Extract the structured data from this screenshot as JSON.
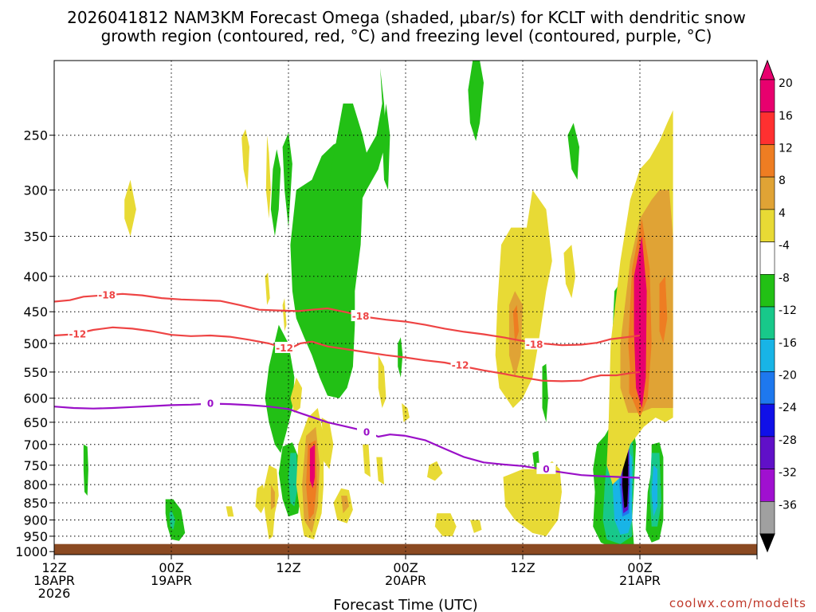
{
  "chart_data": {
    "type": "heatmap",
    "title_line1": "2026041812 NAM3KM Forecast Omega (shaded, μbar/s) for KCLT with dendritic snow",
    "title_line2": "growth region (contoured, red, °C) and freezing level (contoured, purple, °C)",
    "xlabel": "Forecast Time (UTC)",
    "credit": "coolwx.com/modelts",
    "x_hours_range": [
      0,
      36
    ],
    "y_pressure_range": [
      1010,
      195
    ],
    "x_ticks": [
      {
        "hour": 0,
        "line1": "12Z",
        "line2": "18APR",
        "line3": "2026"
      },
      {
        "hour": 6,
        "line1": "00Z",
        "line2": "19APR",
        "line3": ""
      },
      {
        "hour": 12,
        "line1": "12Z",
        "line2": "",
        "line3": ""
      },
      {
        "hour": 18,
        "line1": "00Z",
        "line2": "20APR",
        "line3": ""
      },
      {
        "hour": 24,
        "line1": "12Z",
        "line2": "",
        "line3": ""
      },
      {
        "hour": 30,
        "line1": "00Z",
        "line2": "21APR",
        "line3": ""
      }
    ],
    "y_ticks": [
      250,
      300,
      350,
      400,
      450,
      500,
      550,
      600,
      650,
      700,
      750,
      800,
      850,
      900,
      950,
      1000
    ],
    "colorbar": {
      "labels": [
        "20",
        "16",
        "12",
        "8",
        "4",
        "-4",
        "-8",
        "-12",
        "-16",
        "-20",
        "-24",
        "-28",
        "-32",
        "-36"
      ],
      "colors": [
        "#e8006e",
        "#ff3030",
        "#ee7d22",
        "#e0a335",
        "#e8da35",
        "#ffffff",
        "#22c015",
        "#18c88a",
        "#18b4e6",
        "#1e78ee",
        "#1010e8",
        "#6010c8",
        "#a010d0",
        "#a0a0a0"
      ],
      "top_arrow_color": "#e8006e",
      "bottom_arrow_color": "#000000"
    },
    "omega_colors": {
      "pos4": "#e8da35",
      "pos8": "#e0a335",
      "pos12": "#ee7d22",
      "pos20": "#e8006e",
      "neg4": "#22c015",
      "neg8": "#18c88a",
      "neg12": "#18b4e6",
      "neg20": "#1e78ee",
      "neg24": "#1010e8",
      "neg28": "#6010c8",
      "neg32": "#a010d0",
      "neg36": "#000000",
      "ground": "#8b4a22"
    },
    "ground_pressure": 975,
    "contours": [
      {
        "name": "dgz-minus18",
        "level": -18,
        "color": "#ee4444",
        "points": [
          [
            0,
            435
          ],
          [
            0.8,
            433
          ],
          [
            1.5,
            428
          ],
          [
            2.5,
            426
          ],
          [
            3.5,
            424
          ],
          [
            4.5,
            426
          ],
          [
            5.5,
            430
          ],
          [
            6.5,
            432
          ],
          [
            7.5,
            433
          ],
          [
            8.5,
            434
          ],
          [
            9.5,
            440
          ],
          [
            10.5,
            447
          ],
          [
            11.5,
            448
          ],
          [
            12.5,
            449
          ],
          [
            13.2,
            447
          ],
          [
            14,
            445
          ],
          [
            15,
            451
          ],
          [
            16,
            458
          ],
          [
            17,
            462
          ],
          [
            18,
            465
          ],
          [
            19,
            470
          ],
          [
            20,
            476
          ],
          [
            21,
            481
          ],
          [
            22,
            485
          ],
          [
            23,
            490
          ],
          [
            24,
            496
          ],
          [
            25,
            500
          ],
          [
            26,
            503
          ],
          [
            27,
            502
          ],
          [
            27.8,
            499
          ],
          [
            28.5,
            493
          ],
          [
            29.5,
            489
          ],
          [
            30,
            487
          ]
        ],
        "labels": [
          [
            2.7,
            426
          ],
          [
            15.7,
            457
          ],
          [
            24.6,
            502
          ]
        ]
      },
      {
        "name": "dgz-minus12",
        "level": -12,
        "color": "#ee4444",
        "points": [
          [
            0,
            487
          ],
          [
            1,
            485
          ],
          [
            2,
            478
          ],
          [
            3,
            474
          ],
          [
            4,
            476
          ],
          [
            5,
            480
          ],
          [
            6,
            486
          ],
          [
            7,
            488
          ],
          [
            8,
            487
          ],
          [
            9,
            489
          ],
          [
            10,
            494
          ],
          [
            11,
            500
          ],
          [
            11.6,
            506
          ],
          [
            12,
            510
          ],
          [
            12.6,
            500
          ],
          [
            13.2,
            497
          ],
          [
            14,
            505
          ],
          [
            15,
            510
          ],
          [
            16,
            515
          ],
          [
            17,
            520
          ],
          [
            18,
            524
          ],
          [
            19,
            529
          ],
          [
            20,
            533
          ],
          [
            21,
            540
          ],
          [
            22,
            547
          ],
          [
            23,
            553
          ],
          [
            24,
            560
          ],
          [
            25,
            566
          ],
          [
            26,
            567
          ],
          [
            27,
            566
          ],
          [
            27.5,
            560
          ],
          [
            28,
            556
          ],
          [
            28.8,
            556
          ],
          [
            29.5,
            552
          ],
          [
            30,
            550
          ]
        ],
        "labels": [
          [
            1.2,
            485
          ],
          [
            11.8,
            508
          ],
          [
            20.8,
            538
          ]
        ]
      },
      {
        "name": "freezing-level",
        "level": 0,
        "color": "#9a10c8",
        "points": [
          [
            0,
            617
          ],
          [
            1,
            620
          ],
          [
            2,
            621
          ],
          [
            3,
            620
          ],
          [
            4,
            618
          ],
          [
            5,
            616
          ],
          [
            6,
            614
          ],
          [
            7,
            613
          ],
          [
            8,
            611
          ],
          [
            9,
            612
          ],
          [
            10,
            614
          ],
          [
            11,
            617
          ],
          [
            12,
            622
          ],
          [
            13,
            636
          ],
          [
            14,
            650
          ],
          [
            15,
            660
          ],
          [
            16,
            670
          ],
          [
            16.6,
            682
          ],
          [
            17.2,
            677
          ],
          [
            18,
            680
          ],
          [
            19,
            690
          ],
          [
            20,
            710
          ],
          [
            21,
            730
          ],
          [
            22,
            743
          ],
          [
            23,
            748
          ],
          [
            24,
            752
          ],
          [
            25,
            760
          ],
          [
            26,
            768
          ],
          [
            27,
            775
          ],
          [
            28,
            778
          ],
          [
            29,
            780
          ],
          [
            30,
            782
          ]
        ],
        "labels": [
          [
            8.0,
            611
          ],
          [
            16.0,
            672
          ],
          [
            25.2,
            760
          ]
        ]
      }
    ]
  }
}
